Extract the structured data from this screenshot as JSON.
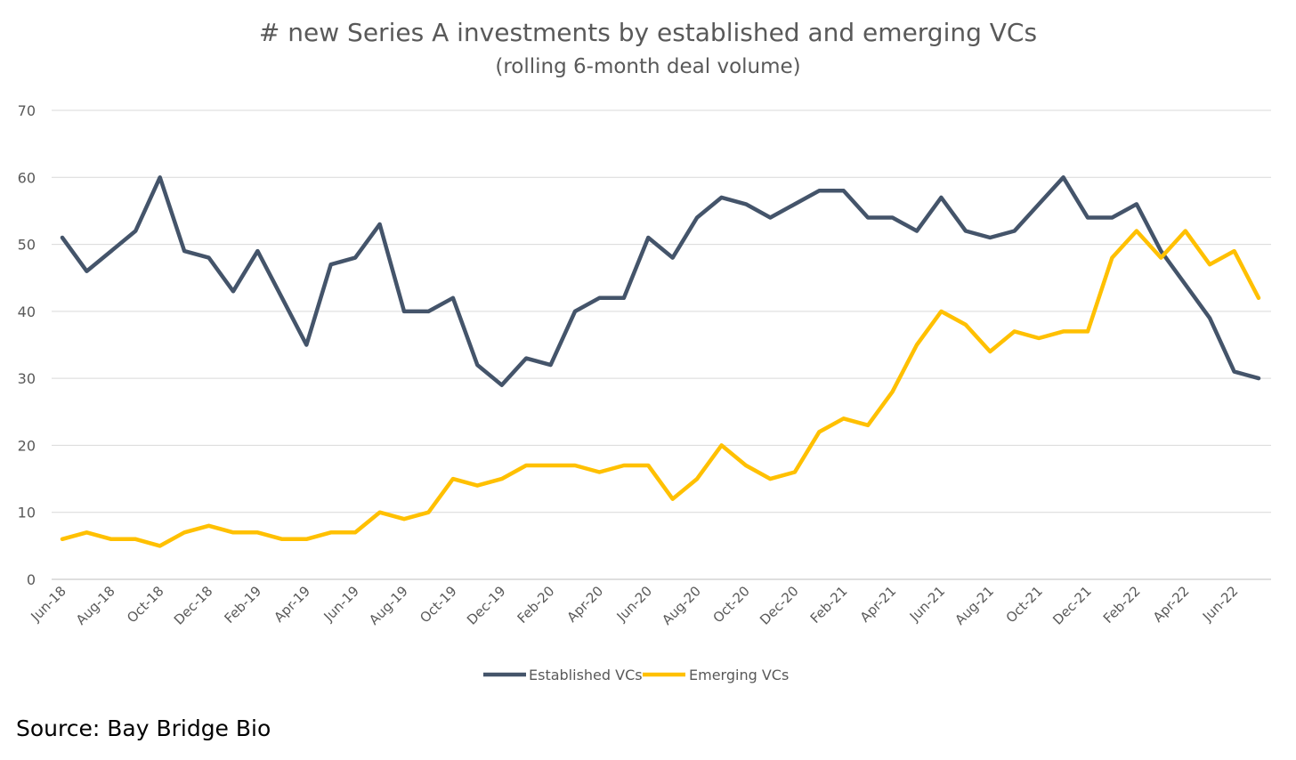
{
  "chart_data": {
    "type": "line",
    "title": "# new Series A investments by established and emerging VCs",
    "subtitle": "(rolling 6-month deal volume)",
    "xlabel": "",
    "ylabel": "",
    "ylim": [
      0,
      70
    ],
    "yticks": [
      0,
      10,
      20,
      30,
      40,
      50,
      60,
      70
    ],
    "grid": true,
    "legend_position": "bottom",
    "x": [
      "Jun-18",
      "Jul-18",
      "Aug-18",
      "Sep-18",
      "Oct-18",
      "Nov-18",
      "Dec-18",
      "Jan-19",
      "Feb-19",
      "Mar-19",
      "Apr-19",
      "May-19",
      "Jun-19",
      "Jul-19",
      "Aug-19",
      "Sep-19",
      "Oct-19",
      "Nov-19",
      "Dec-19",
      "Jan-20",
      "Feb-20",
      "Mar-20",
      "Apr-20",
      "May-20",
      "Jun-20",
      "Jul-20",
      "Aug-20",
      "Sep-20",
      "Oct-20",
      "Nov-20",
      "Dec-20",
      "Jan-21",
      "Feb-21",
      "Mar-21",
      "Apr-21",
      "May-21",
      "Jun-21",
      "Jul-21",
      "Aug-21",
      "Sep-21",
      "Oct-21",
      "Nov-21",
      "Dec-21",
      "Jan-22",
      "Feb-22",
      "Mar-22",
      "Apr-22",
      "May-22",
      "Jun-22",
      "Jul-22"
    ],
    "x_tick_labels": [
      "Jun-18",
      "Aug-18",
      "Oct-18",
      "Dec-18",
      "Feb-19",
      "Apr-19",
      "Jun-19",
      "Aug-19",
      "Oct-19",
      "Dec-19",
      "Feb-20",
      "Apr-20",
      "Jun-20",
      "Aug-20",
      "Oct-20",
      "Dec-20",
      "Feb-21",
      "Apr-21",
      "Jun-21",
      "Aug-21",
      "Oct-21",
      "Dec-21",
      "Feb-22",
      "Apr-22",
      "Jun-22"
    ],
    "series": [
      {
        "name": "Established VCs",
        "color": "#44546A",
        "values": [
          51,
          46,
          49,
          52,
          60,
          49,
          48,
          43,
          49,
          42,
          35,
          47,
          48,
          53,
          40,
          40,
          42,
          32,
          29,
          33,
          32,
          40,
          42,
          42,
          51,
          48,
          54,
          57,
          56,
          54,
          56,
          58,
          58,
          54,
          54,
          52,
          57,
          52,
          51,
          52,
          56,
          60,
          54,
          54,
          56,
          49,
          44,
          39,
          31,
          30
        ]
      },
      {
        "name": "Emerging VCs",
        "color": "#FFC000",
        "values": [
          6,
          7,
          6,
          6,
          5,
          7,
          8,
          7,
          7,
          6,
          6,
          7,
          7,
          10,
          9,
          10,
          15,
          14,
          15,
          17,
          17,
          17,
          16,
          17,
          17,
          12,
          15,
          20,
          17,
          15,
          16,
          22,
          24,
          23,
          28,
          35,
          40,
          38,
          34,
          37,
          36,
          37,
          37,
          48,
          52,
          48,
          52,
          47,
          49,
          42
        ]
      }
    ]
  },
  "source": "Source: Bay Bridge Bio"
}
